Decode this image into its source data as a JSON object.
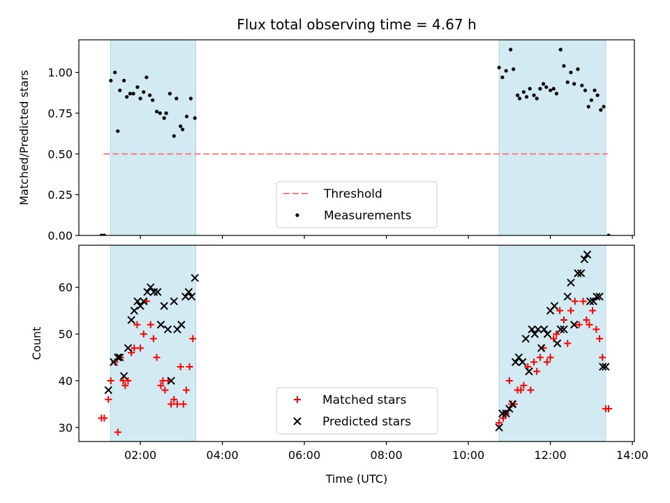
{
  "figure": {
    "title": "Flux total observing time = 4.67 h",
    "xlabel": "Time (UTC)"
  },
  "colors": {
    "band": "#add8e6",
    "threshold": "#f08080",
    "measurement": "#000000",
    "matched": "#ff0000",
    "predicted": "#000000"
  },
  "chart_data": [
    {
      "type": "scatter",
      "ylabel": "Matched/Predicted stars",
      "xlim": [
        0.5,
        14.05
      ],
      "ylim": [
        0,
        1.2
      ],
      "xticks": [
        2,
        4,
        6,
        8,
        10,
        12,
        14
      ],
      "yticks": [
        {
          "v": 0.0,
          "label": "0.00"
        },
        {
          "v": 0.25,
          "label": "0.25"
        },
        {
          "v": 0.5,
          "label": "0.50"
        },
        {
          "v": 0.75,
          "label": "0.75"
        },
        {
          "v": 1.0,
          "label": "1.00"
        }
      ],
      "shaded_intervals": [
        [
          1.27,
          3.35
        ],
        [
          10.75,
          13.35
        ]
      ],
      "threshold": {
        "name": "Threshold",
        "y": 0.5,
        "x": [
          1.1,
          13.4
        ]
      },
      "legend": {
        "position": "lower center",
        "entries": [
          "Threshold",
          "Measurements"
        ]
      },
      "series": [
        {
          "name": "Measurements",
          "x": [
            1.05,
            1.12,
            1.28,
            1.38,
            1.45,
            1.5,
            1.6,
            1.67,
            1.75,
            1.83,
            1.93,
            2.0,
            2.08,
            2.15,
            2.23,
            2.3,
            2.4,
            2.48,
            2.58,
            2.63,
            2.72,
            2.82,
            2.88,
            2.98,
            3.03,
            3.13,
            3.23,
            3.33,
            10.75,
            10.83,
            10.92,
            11.03,
            11.1,
            11.2,
            11.25,
            11.35,
            11.42,
            11.5,
            11.6,
            11.67,
            11.75,
            11.83,
            11.9,
            12.0,
            12.08,
            12.15,
            12.25,
            12.33,
            12.42,
            12.5,
            12.58,
            12.67,
            12.77,
            12.85,
            12.93,
            13.0,
            13.08,
            13.15,
            13.23,
            13.3,
            13.42
          ],
          "y": [
            0.0,
            0.0,
            0.95,
            1.0,
            0.64,
            0.89,
            0.95,
            0.85,
            0.87,
            0.87,
            0.91,
            0.84,
            0.88,
            0.97,
            0.86,
            0.83,
            0.76,
            0.75,
            0.72,
            0.75,
            0.87,
            0.61,
            0.84,
            0.67,
            0.65,
            0.73,
            0.84,
            0.72,
            1.03,
            0.97,
            1.01,
            1.14,
            1.02,
            0.86,
            0.84,
            0.88,
            0.85,
            0.9,
            0.86,
            0.84,
            0.9,
            0.93,
            0.91,
            0.89,
            0.9,
            0.87,
            1.14,
            1.04,
            0.94,
            1.0,
            0.93,
            1.02,
            0.92,
            0.89,
            0.79,
            0.83,
            0.89,
            0.86,
            0.77,
            0.79,
            0.0
          ]
        }
      ]
    },
    {
      "type": "scatter",
      "ylabel": "Count",
      "xlim": [
        0.5,
        14.05
      ],
      "ylim": [
        27,
        69
      ],
      "xticks": [
        2,
        4,
        6,
        8,
        10,
        12,
        14
      ],
      "xticklabels": [
        "02:00",
        "04:00",
        "06:00",
        "08:00",
        "10:00",
        "12:00",
        "14:00"
      ],
      "yticks": [
        {
          "v": 30,
          "label": "30"
        },
        {
          "v": 40,
          "label": "40"
        },
        {
          "v": 50,
          "label": "50"
        },
        {
          "v": 60,
          "label": "60"
        }
      ],
      "shaded_intervals": [
        [
          1.27,
          3.35
        ],
        [
          10.75,
          13.35
        ]
      ],
      "legend": {
        "position": "lower center",
        "entries": [
          "Matched stars",
          "Predicted stars"
        ]
      },
      "series": [
        {
          "name": "Matched stars",
          "marker": "+",
          "x": [
            1.05,
            1.12,
            1.22,
            1.28,
            1.38,
            1.45,
            1.52,
            1.58,
            1.63,
            1.7,
            1.78,
            1.85,
            1.92,
            2.0,
            2.08,
            2.15,
            2.25,
            2.32,
            2.4,
            2.5,
            2.55,
            2.6,
            2.68,
            2.75,
            2.82,
            2.9,
            2.98,
            3.05,
            3.12,
            3.2,
            3.28,
            10.75,
            10.85,
            10.92,
            11.0,
            11.05,
            11.12,
            11.2,
            11.28,
            11.35,
            11.45,
            11.52,
            11.6,
            11.67,
            11.75,
            11.83,
            11.92,
            12.0,
            12.08,
            12.15,
            12.23,
            12.33,
            12.42,
            12.5,
            12.6,
            12.7,
            12.8,
            12.88,
            12.95,
            13.03,
            13.12,
            13.2,
            13.27,
            13.35,
            13.42
          ],
          "y": [
            32,
            32,
            36,
            40,
            44,
            29,
            45,
            40,
            39,
            40,
            46,
            47,
            52,
            47,
            50,
            57,
            52,
            49,
            45,
            39,
            40,
            38,
            40,
            35,
            36,
            35,
            43,
            35,
            38,
            43,
            49,
            31,
            32,
            33,
            40,
            35,
            35,
            38,
            38,
            39,
            43,
            38,
            44,
            42,
            45,
            47,
            44,
            45,
            49,
            50,
            55,
            53,
            48,
            55,
            57,
            52,
            57,
            53,
            52,
            55,
            51,
            49,
            45,
            34,
            34
          ]
        },
        {
          "name": "Predicted stars",
          "marker": "x",
          "x": [
            1.22,
            1.35,
            1.45,
            1.5,
            1.6,
            1.7,
            1.78,
            1.85,
            1.93,
            2.0,
            2.08,
            2.17,
            2.25,
            2.33,
            2.42,
            2.5,
            2.58,
            2.67,
            2.75,
            2.82,
            2.9,
            3.0,
            3.1,
            3.18,
            3.25,
            3.33,
            10.75,
            10.83,
            10.92,
            11.0,
            11.08,
            11.15,
            11.23,
            11.32,
            11.4,
            11.48,
            11.55,
            11.62,
            11.7,
            11.78,
            11.85,
            11.93,
            12.0,
            12.1,
            12.17,
            12.25,
            12.33,
            12.42,
            12.5,
            12.58,
            12.67,
            12.75,
            12.83,
            12.9,
            12.97,
            13.05,
            13.13,
            13.2,
            13.28,
            13.35
          ],
          "y": [
            38,
            44,
            45,
            45,
            41,
            47,
            53,
            55,
            57,
            56,
            57,
            59,
            60,
            59,
            59,
            52,
            56,
            51,
            40,
            57,
            51,
            52,
            58,
            59,
            58,
            62,
            30,
            33,
            33,
            34,
            35,
            44,
            45,
            44,
            49,
            42,
            51,
            50,
            51,
            47,
            51,
            50,
            55,
            56,
            48,
            51,
            51,
            58,
            61,
            52,
            63,
            63,
            66,
            67,
            57,
            57,
            58,
            58,
            43,
            43
          ]
        }
      ]
    }
  ]
}
